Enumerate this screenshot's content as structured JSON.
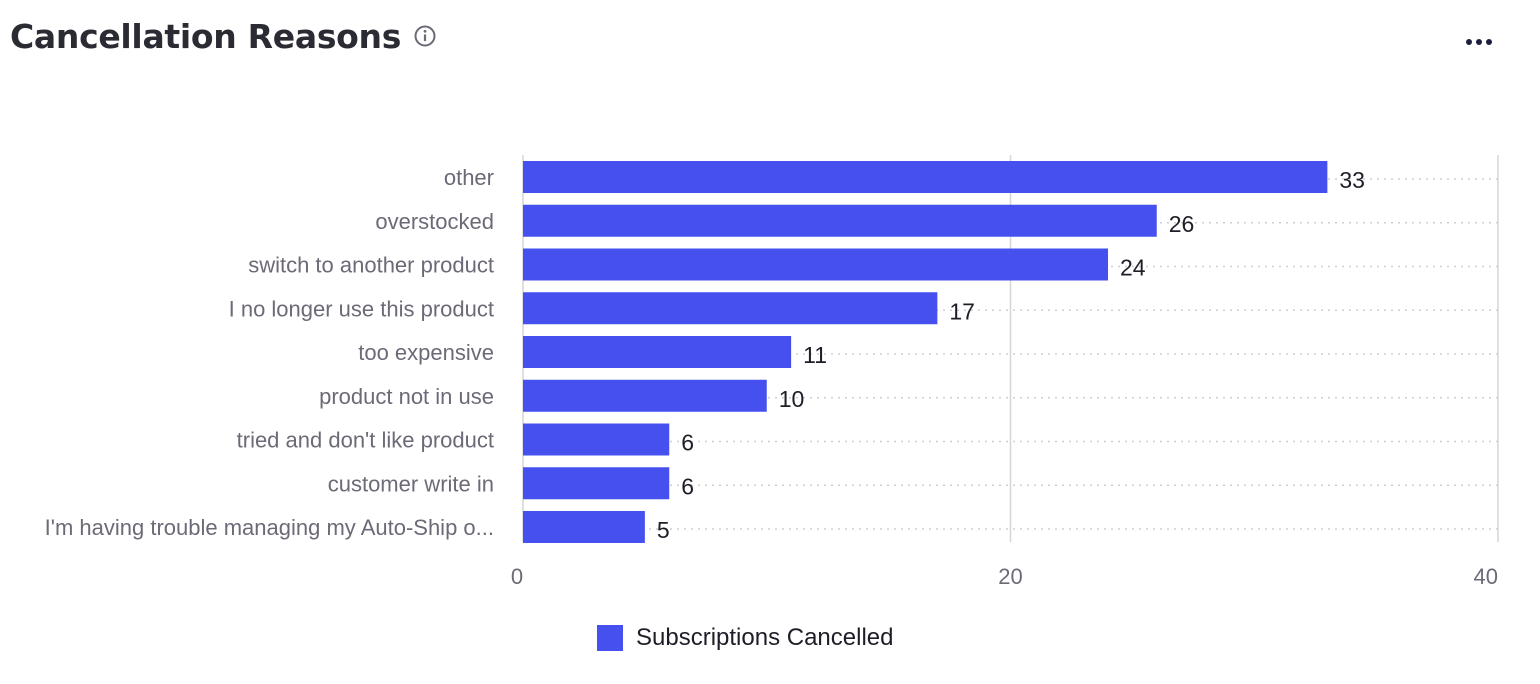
{
  "header": {
    "title": "Cancellation Reasons",
    "info_icon": "info-circle-icon",
    "menu_icon": "more-horizontal-icon"
  },
  "colors": {
    "bar": "#4650ee",
    "title": "#2b2b33",
    "axis_text": "#6b6b78",
    "grid": "#d6d6d6"
  },
  "chart_data": {
    "type": "bar",
    "orientation": "horizontal",
    "categories": [
      "other",
      "overstocked",
      "switch to another product",
      "I no longer use this product",
      "too expensive",
      "product not in use",
      "tried and don't like product",
      "customer write in",
      "I'm having trouble managing my Auto-Ship o..."
    ],
    "series": [
      {
        "name": "Subscriptions Cancelled",
        "values": [
          33,
          26,
          24,
          17,
          11,
          10,
          6,
          6,
          5
        ]
      }
    ],
    "data_labels": [
      "33",
      "26",
      "24",
      "17",
      "11",
      "10",
      "6",
      "6",
      "5"
    ],
    "x_ticks": [
      "0",
      "20",
      "40"
    ],
    "xlim": [
      0,
      40
    ],
    "grid": true,
    "legend_position": "bottom-center",
    "title": "Cancellation Reasons"
  }
}
